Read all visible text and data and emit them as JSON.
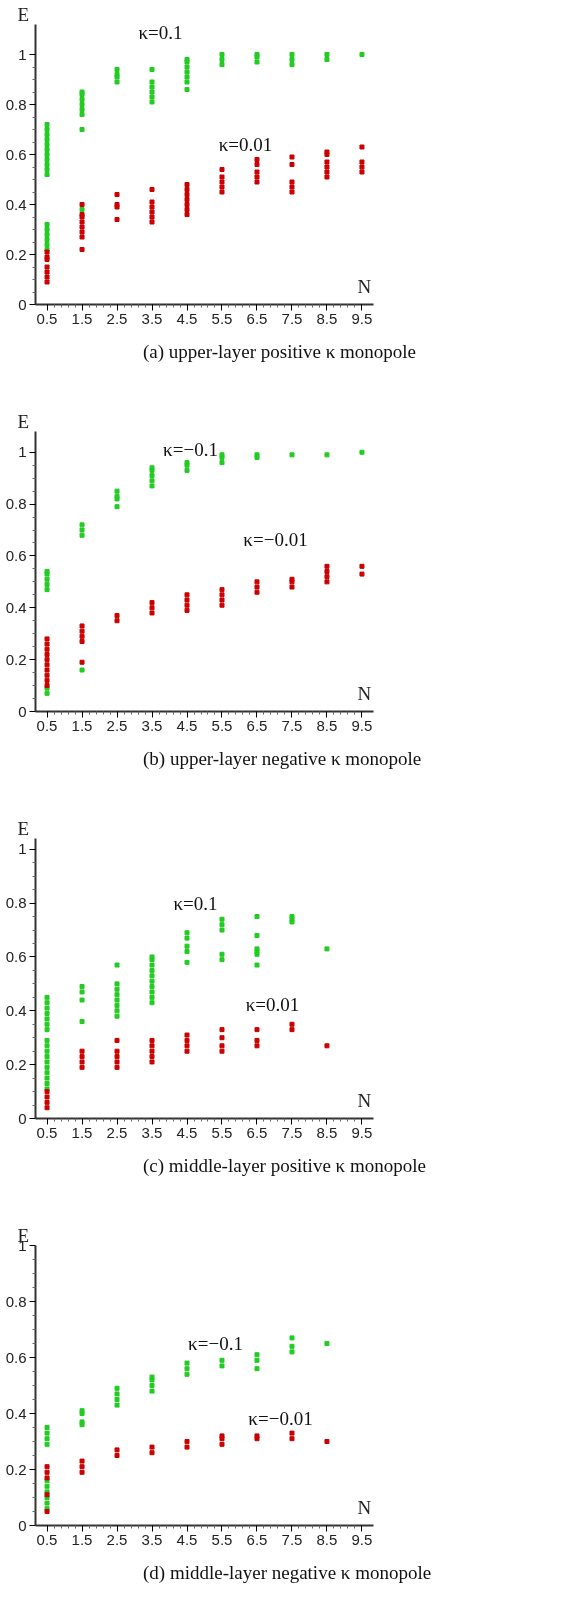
{
  "chart_data": [
    {
      "type": "scatter",
      "title": "(a) upper-layer positive κ monopole",
      "xlabel": "N",
      "ylabel": "E",
      "marker": "square",
      "xlim": [
        0.17,
        9.83
      ],
      "ylim": [
        0,
        1.12
      ],
      "xticks": [
        0.5,
        1.5,
        2.5,
        3.5,
        4.5,
        5.5,
        6.5,
        7.5,
        8.5,
        9.5
      ],
      "yticks": [
        0,
        0.2,
        0.4,
        0.6,
        0.8,
        1
      ],
      "annotations": [
        "κ=0.1",
        "κ=0.01"
      ],
      "series": [
        {
          "color": "#22cc22",
          "x": [
            0.5,
            0.5,
            0.5,
            0.5,
            0.5,
            0.5,
            0.5,
            0.5,
            0.5,
            0.5,
            0.5,
            0.5,
            0.5,
            0.5,
            0.5,
            0.5,
            0.5,
            1.5,
            1.5,
            1.5,
            1.5,
            1.5,
            1.5,
            1.5,
            1.5,
            2.5,
            2.5,
            2.5,
            2.5,
            3.5,
            3.5,
            3.5,
            3.5,
            3.5,
            3.5,
            4.5,
            4.5,
            4.5,
            4.5,
            4.5,
            4.5,
            4.5,
            5.5,
            5.5,
            5.5,
            6.5,
            6.5,
            6.5,
            7.5,
            7.5,
            7.5,
            8.5,
            8.5,
            9.5
          ],
          "values": [
            0.52,
            0.54,
            0.56,
            0.58,
            0.6,
            0.62,
            0.64,
            0.66,
            0.68,
            0.7,
            0.72,
            0.22,
            0.24,
            0.26,
            0.28,
            0.3,
            0.32,
            0.38,
            0.7,
            0.76,
            0.78,
            0.8,
            0.82,
            0.84,
            0.85,
            0.89,
            0.91,
            0.92,
            0.94,
            0.81,
            0.83,
            0.85,
            0.87,
            0.89,
            0.94,
            0.86,
            0.89,
            0.91,
            0.93,
            0.95,
            0.97,
            0.98,
            0.96,
            0.98,
            1.0,
            0.97,
            0.99,
            1.0,
            0.96,
            0.98,
            1.0,
            0.98,
            1.0,
            1.0
          ]
        },
        {
          "color": "#cc0000",
          "x": [
            0.5,
            0.5,
            0.5,
            0.5,
            0.5,
            0.5,
            0.5,
            1.5,
            1.5,
            1.5,
            1.5,
            1.5,
            1.5,
            1.5,
            1.5,
            2.5,
            2.5,
            2.5,
            2.5,
            3.5,
            3.5,
            3.5,
            3.5,
            3.5,
            3.5,
            4.5,
            4.5,
            4.5,
            4.5,
            4.5,
            4.5,
            4.5,
            5.5,
            5.5,
            5.5,
            5.5,
            5.5,
            6.5,
            6.5,
            6.5,
            6.5,
            6.5,
            7.5,
            7.5,
            7.5,
            7.5,
            7.5,
            8.5,
            8.5,
            8.5,
            8.5,
            8.5,
            8.5,
            9.5,
            9.5,
            9.5,
            9.5
          ],
          "values": [
            0.09,
            0.11,
            0.13,
            0.15,
            0.18,
            0.19,
            0.21,
            0.22,
            0.27,
            0.29,
            0.31,
            0.33,
            0.35,
            0.36,
            0.4,
            0.34,
            0.39,
            0.4,
            0.44,
            0.33,
            0.35,
            0.37,
            0.39,
            0.41,
            0.46,
            0.36,
            0.38,
            0.4,
            0.42,
            0.44,
            0.46,
            0.48,
            0.45,
            0.47,
            0.49,
            0.51,
            0.54,
            0.49,
            0.51,
            0.53,
            0.56,
            0.58,
            0.45,
            0.47,
            0.49,
            0.56,
            0.59,
            0.51,
            0.53,
            0.55,
            0.57,
            0.6,
            0.61,
            0.53,
            0.55,
            0.57,
            0.63
          ]
        }
      ]
    },
    {
      "type": "scatter",
      "title": "(b) upper-layer negative κ monopole",
      "xlabel": "N",
      "ylabel": "E",
      "marker": "square",
      "xlim": [
        0.17,
        9.83
      ],
      "ylim": [
        0,
        1.08
      ],
      "xticks": [
        0.5,
        1.5,
        2.5,
        3.5,
        4.5,
        5.5,
        6.5,
        7.5,
        8.5,
        9.5
      ],
      "yticks": [
        0,
        0.2,
        0.4,
        0.6,
        0.8,
        1
      ],
      "annotations": [
        "κ=−0.1",
        "κ=−0.01"
      ],
      "series": [
        {
          "color": "#22cc22",
          "x": [
            0.5,
            0.5,
            0.5,
            0.5,
            0.5,
            0.5,
            0.5,
            1.5,
            1.5,
            1.5,
            1.5,
            2.5,
            2.5,
            2.5,
            2.5,
            3.5,
            3.5,
            3.5,
            3.5,
            3.5,
            4.5,
            4.5,
            4.5,
            5.5,
            5.5,
            5.5,
            6.5,
            6.5,
            7.5,
            8.5,
            9.5
          ],
          "values": [
            0.47,
            0.49,
            0.51,
            0.53,
            0.54,
            0.07,
            0.09,
            0.68,
            0.7,
            0.72,
            0.16,
            0.79,
            0.82,
            0.83,
            0.85,
            0.87,
            0.89,
            0.91,
            0.93,
            0.94,
            0.93,
            0.95,
            0.96,
            0.96,
            0.98,
            0.99,
            0.98,
            0.99,
            0.99,
            0.99,
            1.0
          ]
        },
        {
          "color": "#cc0000",
          "x": [
            0.5,
            0.5,
            0.5,
            0.5,
            0.5,
            0.5,
            0.5,
            0.5,
            0.5,
            0.5,
            1.5,
            1.5,
            1.5,
            1.5,
            1.5,
            2.5,
            2.5,
            3.5,
            3.5,
            3.5,
            4.5,
            4.5,
            4.5,
            4.5,
            5.5,
            5.5,
            5.5,
            5.5,
            6.5,
            6.5,
            6.5,
            7.5,
            7.5,
            7.5,
            8.5,
            8.5,
            8.5,
            8.5,
            9.5,
            9.5
          ],
          "values": [
            0.1,
            0.12,
            0.14,
            0.16,
            0.18,
            0.2,
            0.22,
            0.24,
            0.26,
            0.28,
            0.19,
            0.27,
            0.29,
            0.31,
            0.33,
            0.35,
            0.37,
            0.38,
            0.4,
            0.42,
            0.39,
            0.41,
            0.43,
            0.45,
            0.41,
            0.43,
            0.45,
            0.47,
            0.46,
            0.48,
            0.5,
            0.48,
            0.5,
            0.51,
            0.5,
            0.52,
            0.54,
            0.56,
            0.53,
            0.56
          ]
        }
      ]
    },
    {
      "type": "scatter",
      "title": "(c) middle-layer positive κ monopole",
      "xlabel": "N",
      "ylabel": "E",
      "marker": "square",
      "xlim": [
        0.17,
        9.83
      ],
      "ylim": [
        0,
        1.04
      ],
      "xticks": [
        0.5,
        1.5,
        2.5,
        3.5,
        4.5,
        5.5,
        6.5,
        7.5,
        8.5,
        9.5
      ],
      "yticks": [
        0,
        0.2,
        0.4,
        0.6,
        0.8,
        1
      ],
      "annotations": [
        "κ=0.1",
        "κ=0.01"
      ],
      "series": [
        {
          "color": "#22cc22",
          "x": [
            0.5,
            0.5,
            0.5,
            0.5,
            0.5,
            0.5,
            0.5,
            0.5,
            0.5,
            0.5,
            0.5,
            0.5,
            0.5,
            0.5,
            0.5,
            0.5,
            0.5,
            1.5,
            1.5,
            1.5,
            1.5,
            2.5,
            2.5,
            2.5,
            2.5,
            2.5,
            2.5,
            2.5,
            2.5,
            3.5,
            3.5,
            3.5,
            3.5,
            3.5,
            3.5,
            3.5,
            3.5,
            3.5,
            3.5,
            4.5,
            4.5,
            4.5,
            4.5,
            4.5,
            5.5,
            5.5,
            5.5,
            5.5,
            5.5,
            6.5,
            6.5,
            6.5,
            6.5,
            6.5,
            6.5,
            7.5,
            7.5,
            7.5,
            8.5
          ],
          "values": [
            0.11,
            0.13,
            0.15,
            0.17,
            0.19,
            0.21,
            0.23,
            0.25,
            0.27,
            0.29,
            0.33,
            0.35,
            0.37,
            0.39,
            0.41,
            0.43,
            0.45,
            0.36,
            0.44,
            0.47,
            0.49,
            0.38,
            0.4,
            0.42,
            0.44,
            0.46,
            0.48,
            0.5,
            0.57,
            0.43,
            0.45,
            0.47,
            0.49,
            0.51,
            0.53,
            0.55,
            0.57,
            0.59,
            0.6,
            0.58,
            0.62,
            0.64,
            0.67,
            0.69,
            0.59,
            0.61,
            0.7,
            0.72,
            0.74,
            0.57,
            0.61,
            0.62,
            0.63,
            0.68,
            0.75,
            0.73,
            0.74,
            0.75,
            0.63
          ]
        },
        {
          "color": "#cc0000",
          "x": [
            0.5,
            0.5,
            0.5,
            0.5,
            1.5,
            1.5,
            1.5,
            1.5,
            2.5,
            2.5,
            2.5,
            2.5,
            2.5,
            3.5,
            3.5,
            3.5,
            3.5,
            3.5,
            4.5,
            4.5,
            4.5,
            4.5,
            5.5,
            5.5,
            5.5,
            5.5,
            6.5,
            6.5,
            6.5,
            7.5,
            7.5,
            8.5
          ],
          "values": [
            0.04,
            0.06,
            0.08,
            0.1,
            0.19,
            0.21,
            0.23,
            0.25,
            0.19,
            0.21,
            0.23,
            0.25,
            0.29,
            0.21,
            0.23,
            0.25,
            0.27,
            0.29,
            0.25,
            0.27,
            0.29,
            0.31,
            0.25,
            0.27,
            0.3,
            0.33,
            0.27,
            0.29,
            0.33,
            0.33,
            0.35,
            0.27
          ]
        }
      ]
    },
    {
      "type": "scatter",
      "title": "(d) middle-layer negative κ monopole",
      "xlabel": "N",
      "ylabel": "E",
      "marker": "square",
      "xlim": [
        0.17,
        9.83
      ],
      "ylim": [
        0,
        1.0
      ],
      "xticks": [
        0.5,
        1.5,
        2.5,
        3.5,
        4.5,
        5.5,
        6.5,
        7.5,
        8.5,
        9.5
      ],
      "yticks": [
        0,
        0.2,
        0.4,
        0.6,
        0.8,
        1
      ],
      "annotations": [
        "κ=−0.1",
        "κ=−0.01"
      ],
      "series": [
        {
          "color": "#22cc22",
          "x": [
            0.5,
            0.5,
            0.5,
            0.5,
            0.5,
            0.5,
            0.5,
            0.5,
            0.5,
            0.5,
            1.5,
            1.5,
            1.5,
            1.5,
            2.5,
            2.5,
            2.5,
            2.5,
            3.5,
            3.5,
            3.5,
            3.5,
            4.5,
            4.5,
            4.5,
            5.5,
            5.5,
            6.5,
            6.5,
            6.5,
            7.5,
            7.5,
            7.5,
            8.5
          ],
          "values": [
            0.06,
            0.08,
            0.1,
            0.12,
            0.14,
            0.16,
            0.29,
            0.31,
            0.33,
            0.35,
            0.36,
            0.37,
            0.4,
            0.41,
            0.43,
            0.45,
            0.47,
            0.49,
            0.48,
            0.5,
            0.52,
            0.53,
            0.54,
            0.56,
            0.58,
            0.57,
            0.59,
            0.56,
            0.59,
            0.61,
            0.62,
            0.64,
            0.67,
            0.65
          ]
        },
        {
          "color": "#cc0000",
          "x": [
            0.5,
            0.5,
            0.5,
            0.5,
            0.5,
            1.5,
            1.5,
            1.5,
            2.5,
            2.5,
            3.5,
            3.5,
            4.5,
            4.5,
            5.5,
            5.5,
            5.5,
            6.5,
            6.5,
            7.5,
            7.5,
            8.5
          ],
          "values": [
            0.05,
            0.11,
            0.17,
            0.19,
            0.21,
            0.19,
            0.21,
            0.23,
            0.25,
            0.27,
            0.26,
            0.28,
            0.28,
            0.3,
            0.29,
            0.31,
            0.32,
            0.31,
            0.32,
            0.31,
            0.33,
            0.3
          ]
        }
      ]
    }
  ]
}
